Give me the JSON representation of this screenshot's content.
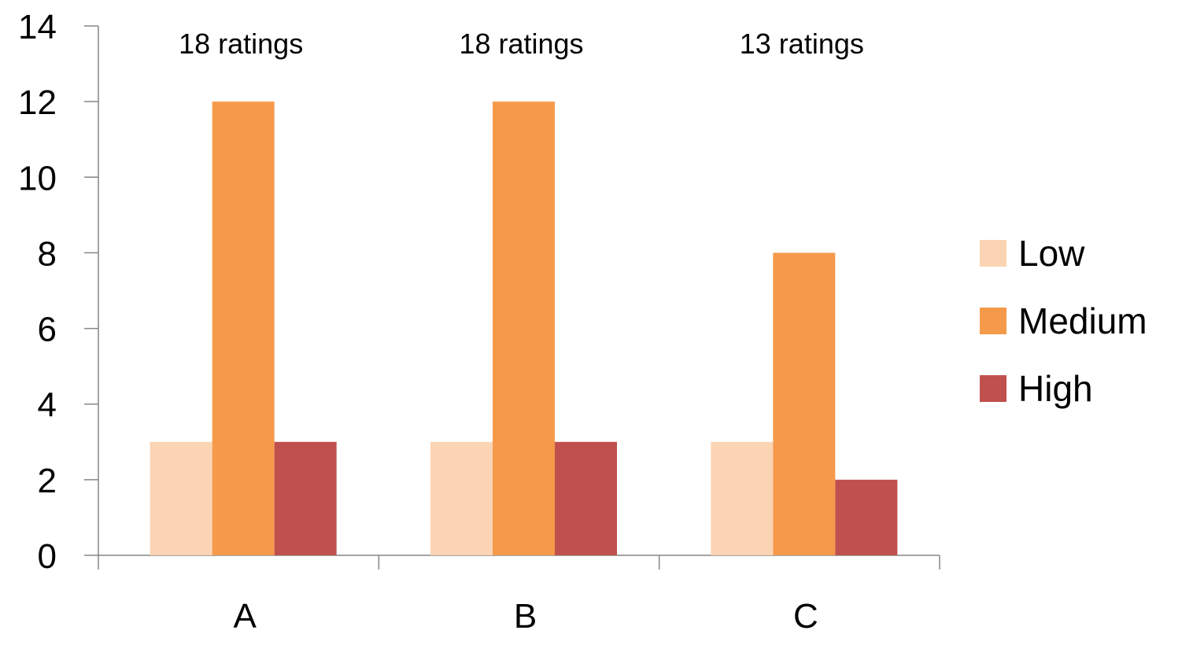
{
  "chart_data": {
    "type": "bar",
    "categories": [
      "A",
      "B",
      "C"
    ],
    "series": [
      {
        "name": "Low",
        "values": [
          3,
          3,
          3
        ],
        "color": "#FAD4B3"
      },
      {
        "name": "Medium",
        "values": [
          12,
          12,
          8
        ],
        "color": "#F59A4A"
      },
      {
        "name": "High",
        "values": [
          3,
          3,
          2
        ],
        "color": "#C0504D"
      }
    ],
    "annotations": [
      "18 ratings",
      "18 ratings",
      "13 ratings"
    ],
    "title": "",
    "xlabel": "",
    "ylabel": "",
    "ylim": [
      0,
      14
    ],
    "yticks": [
      "0",
      "2",
      "4",
      "6",
      "8",
      "10",
      "12",
      "14"
    ],
    "grid": false,
    "legend_position": "right"
  }
}
